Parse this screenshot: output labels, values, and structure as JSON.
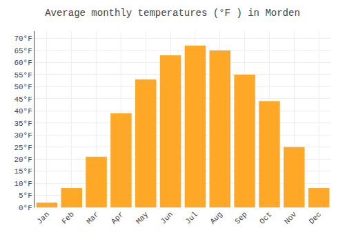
{
  "chart_data": {
    "type": "bar",
    "title": "Average monthly temperatures (°F ) in Morden",
    "categories": [
      "Jan",
      "Feb",
      "Mar",
      "Apr",
      "May",
      "Jun",
      "Jul",
      "Aug",
      "Sep",
      "Oct",
      "Nov",
      "Dec"
    ],
    "values": [
      2,
      8,
      21,
      39,
      53,
      63,
      67,
      65,
      55,
      44,
      25,
      8
    ],
    "color": "#FFA726",
    "ylim": [
      0,
      73
    ],
    "yticks": [
      {
        "value": 0,
        "label": "0°F"
      },
      {
        "value": 5,
        "label": "5°F"
      },
      {
        "value": 10,
        "label": "10°F"
      },
      {
        "value": 15,
        "label": "15°F"
      },
      {
        "value": 20,
        "label": "20°F"
      },
      {
        "value": 25,
        "label": "25°F"
      },
      {
        "value": 30,
        "label": "30°F"
      },
      {
        "value": 35,
        "label": "35°F"
      },
      {
        "value": 40,
        "label": "40°F"
      },
      {
        "value": 45,
        "label": "45°F"
      },
      {
        "value": 50,
        "label": "50°F"
      },
      {
        "value": 55,
        "label": "55°F"
      },
      {
        "value": 60,
        "label": "60°F"
      },
      {
        "value": 65,
        "label": "65°F"
      },
      {
        "value": 70,
        "label": "70°F"
      }
    ],
    "grid": true
  }
}
